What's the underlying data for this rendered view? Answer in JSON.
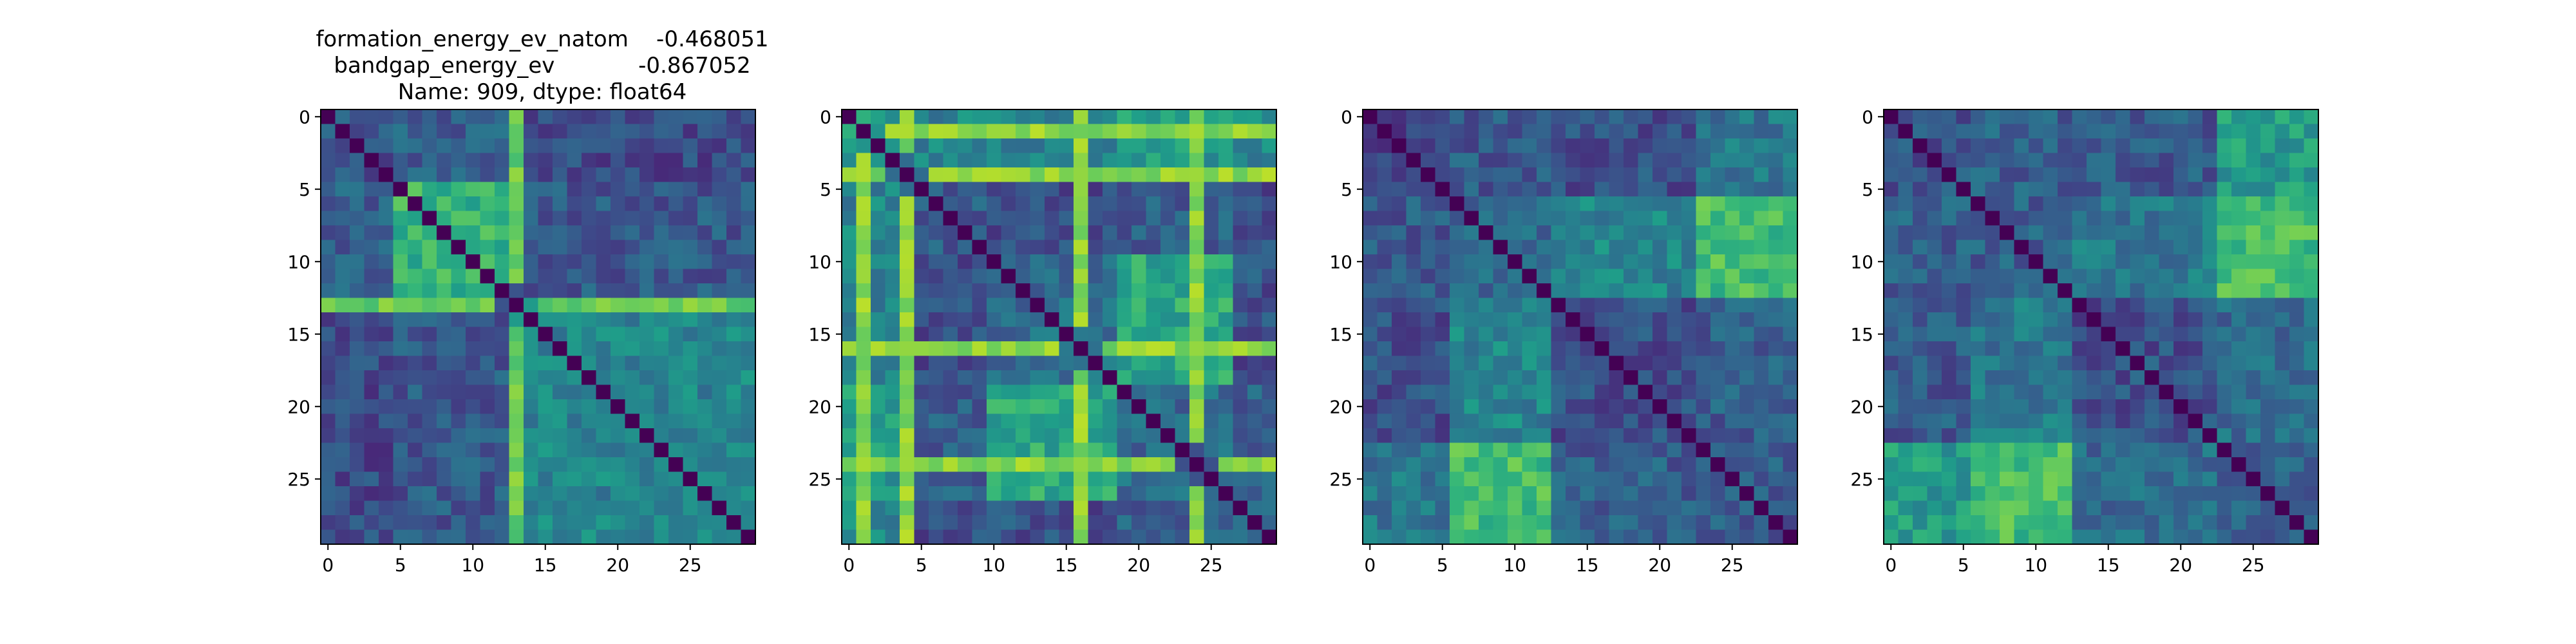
{
  "figure": {
    "title_lines": [
      "formation_energy_ev_natom    -0.468051",
      "bandgap_energy_ev            -0.867052",
      "Name: 909, dtype: float64"
    ]
  },
  "chart_data": [
    {
      "type": "heatmap",
      "colormap": "viridis",
      "size": 30,
      "xticks": [
        0,
        5,
        10,
        15,
        20,
        25
      ],
      "yticks": [
        0,
        5,
        10,
        15,
        20,
        25
      ],
      "groups": [
        [
          0,
          4
        ],
        [
          5,
          12
        ],
        [
          13,
          29
        ]
      ],
      "block_levels": [
        [
          0.25,
          0.3,
          0.22
        ],
        [
          0.3,
          0.65,
          0.28
        ],
        [
          0.22,
          0.28,
          0.45
        ]
      ],
      "hot_rows": [
        13
      ],
      "hot_cols": [
        13
      ],
      "hot_level": 0.85
    },
    {
      "type": "heatmap",
      "colormap": "viridis",
      "size": 30,
      "xticks": [
        0,
        5,
        10,
        15,
        20,
        25
      ],
      "yticks": [
        0,
        5,
        10,
        15,
        20,
        25
      ],
      "groups": [
        [
          0,
          3
        ],
        [
          4,
          9
        ],
        [
          10,
          18
        ],
        [
          19,
          26
        ],
        [
          27,
          29
        ]
      ],
      "block_levels": [
        [
          0.55,
          0.45,
          0.45,
          0.55,
          0.45
        ],
        [
          0.45,
          0.3,
          0.25,
          0.3,
          0.25
        ],
        [
          0.45,
          0.25,
          0.35,
          0.6,
          0.25
        ],
        [
          0.55,
          0.3,
          0.6,
          0.35,
          0.3
        ],
        [
          0.45,
          0.25,
          0.25,
          0.3,
          0.3
        ]
      ],
      "hot_rows": [
        1,
        4,
        16,
        24
      ],
      "hot_cols": [
        1,
        4,
        16,
        24
      ],
      "hot_level": 0.9
    },
    {
      "type": "heatmap",
      "colormap": "viridis",
      "size": 30,
      "xticks": [
        0,
        5,
        10,
        15,
        20,
        25
      ],
      "yticks": [
        0,
        5,
        10,
        15,
        20,
        25
      ],
      "groups": [
        [
          0,
          5
        ],
        [
          6,
          12
        ],
        [
          13,
          22
        ],
        [
          23,
          29
        ]
      ],
      "block_levels": [
        [
          0.22,
          0.28,
          0.25,
          0.4
        ],
        [
          0.28,
          0.35,
          0.45,
          0.7
        ],
        [
          0.25,
          0.45,
          0.25,
          0.3
        ],
        [
          0.4,
          0.7,
          0.3,
          0.28
        ]
      ],
      "hot_rows": [],
      "hot_cols": [],
      "hot_level": 0.8
    },
    {
      "type": "heatmap",
      "colormap": "viridis",
      "size": 30,
      "xticks": [
        0,
        5,
        10,
        15,
        20,
        25
      ],
      "yticks": [
        0,
        5,
        10,
        15,
        20,
        25
      ],
      "groups": [
        [
          0,
          5
        ],
        [
          6,
          12
        ],
        [
          13,
          22
        ],
        [
          23,
          29
        ]
      ],
      "block_levels": [
        [
          0.25,
          0.3,
          0.28,
          0.55
        ],
        [
          0.3,
          0.3,
          0.4,
          0.68
        ],
        [
          0.28,
          0.4,
          0.25,
          0.35
        ],
        [
          0.55,
          0.68,
          0.35,
          0.3
        ]
      ],
      "hot_rows": [],
      "hot_cols": [],
      "hot_level": 0.8
    }
  ]
}
